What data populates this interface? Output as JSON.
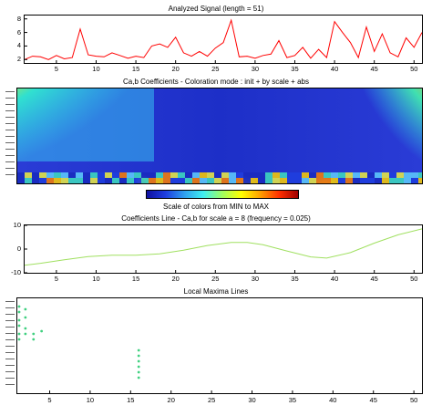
{
  "panels": {
    "signal": {
      "title": "Analyzed Signal  (length = 51)",
      "y_ticks": [
        "8",
        "6",
        "4",
        "2"
      ],
      "x_ticks": [
        "5",
        "10",
        "15",
        "20",
        "25",
        "30",
        "35",
        "40",
        "45",
        "50"
      ]
    },
    "coeffs": {
      "title": "Ca,b Coefficients  - Coloration mode : init + by scale + abs"
    },
    "colorbar": {
      "label": "Scale of colors from MIN to MAX"
    },
    "line": {
      "title": "Coefficients Line - Ca,b  for scale a = 8  (frequency =  0.025)",
      "y_ticks": [
        "10",
        "0",
        "-10"
      ],
      "x_ticks": [
        "5",
        "10",
        "15",
        "20",
        "25",
        "30",
        "35",
        "40",
        "45",
        "50"
      ]
    },
    "maxima": {
      "title": "Local Maxima Lines",
      "x_ticks": [
        "5",
        "10",
        "15",
        "20",
        "25",
        "30",
        "35",
        "40",
        "45",
        "50"
      ]
    }
  },
  "colors": {
    "signal_line": "#ff0000",
    "coef_line": "#a0e060",
    "maxima_points": "#40d080"
  },
  "chart_data": [
    {
      "type": "line",
      "title": "Analyzed Signal  (length = 51)",
      "x": [
        1,
        2,
        3,
        4,
        5,
        6,
        7,
        8,
        9,
        10,
        11,
        12,
        13,
        14,
        15,
        16,
        17,
        18,
        19,
        20,
        21,
        22,
        23,
        24,
        25,
        26,
        27,
        28,
        29,
        30,
        31,
        32,
        33,
        34,
        35,
        36,
        37,
        38,
        39,
        40,
        41,
        42,
        43,
        44,
        45,
        46,
        47,
        48,
        49,
        50,
        51
      ],
      "series": [
        {
          "values": [
            2,
            2.5,
            2.4,
            2,
            2.6,
            2.1,
            2.3,
            6.5,
            2.7,
            2.5,
            2.4,
            3,
            2.6,
            2.2,
            2.5,
            2.3,
            4,
            4.3,
            3.8,
            5.3,
            3,
            2.5,
            3.2,
            2.5,
            3.7,
            4.5,
            7.8,
            2.4,
            2.5,
            2.2,
            2.6,
            2.8,
            4.8,
            2.3,
            2.6,
            3.8,
            2.2,
            3.5,
            2.3,
            7.6,
            6,
            4.5,
            2.3,
            6.8,
            3.2,
            5.8,
            3,
            2.4,
            5.2,
            3.8,
            6
          ]
        }
      ],
      "xlim": [
        1,
        51
      ],
      "ylim": [
        1.5,
        8.5
      ]
    },
    {
      "type": "heatmap",
      "title": "Ca,b Coefficients  - Coloration mode : init + by scale + abs",
      "colorbar_label": "Scale of colors from MIN to MAX",
      "xlim": [
        1,
        51
      ]
    },
    {
      "type": "line",
      "title": "Coefficients Line - Ca,b  for scale a = 8  (frequency =  0.025)",
      "x": [
        1,
        3,
        6,
        9,
        12,
        15,
        18,
        21,
        24,
        27,
        29,
        31,
        34,
        37,
        39,
        42,
        45,
        48,
        51
      ],
      "series": [
        {
          "values": [
            -6.8,
            -6,
            -4.5,
            -3.2,
            -2.6,
            -2.6,
            -2,
            -0.5,
            1.5,
            2.8,
            2.8,
            1.8,
            -0.8,
            -3.3,
            -3.8,
            -1.5,
            2.5,
            6,
            8.5
          ]
        }
      ],
      "xlim": [
        1,
        51
      ],
      "ylim": [
        -10,
        10
      ]
    },
    {
      "type": "scatter",
      "title": "Local Maxima Lines",
      "series": [
        {
          "points": [
            [
              1,
              3
            ],
            [
              1,
              5
            ],
            [
              1,
              8
            ],
            [
              1,
              10
            ],
            [
              1,
              13
            ],
            [
              1,
              15
            ],
            [
              2,
              4
            ],
            [
              2,
              7
            ],
            [
              2,
              11
            ],
            [
              2,
              13
            ],
            [
              3,
              13
            ],
            [
              3,
              15
            ],
            [
              4,
              12
            ],
            [
              16,
              19
            ],
            [
              16,
              21
            ],
            [
              16,
              23
            ],
            [
              16,
              25
            ],
            [
              16,
              27
            ],
            [
              16,
              29
            ]
          ]
        }
      ],
      "xlim": [
        1,
        51
      ]
    }
  ]
}
